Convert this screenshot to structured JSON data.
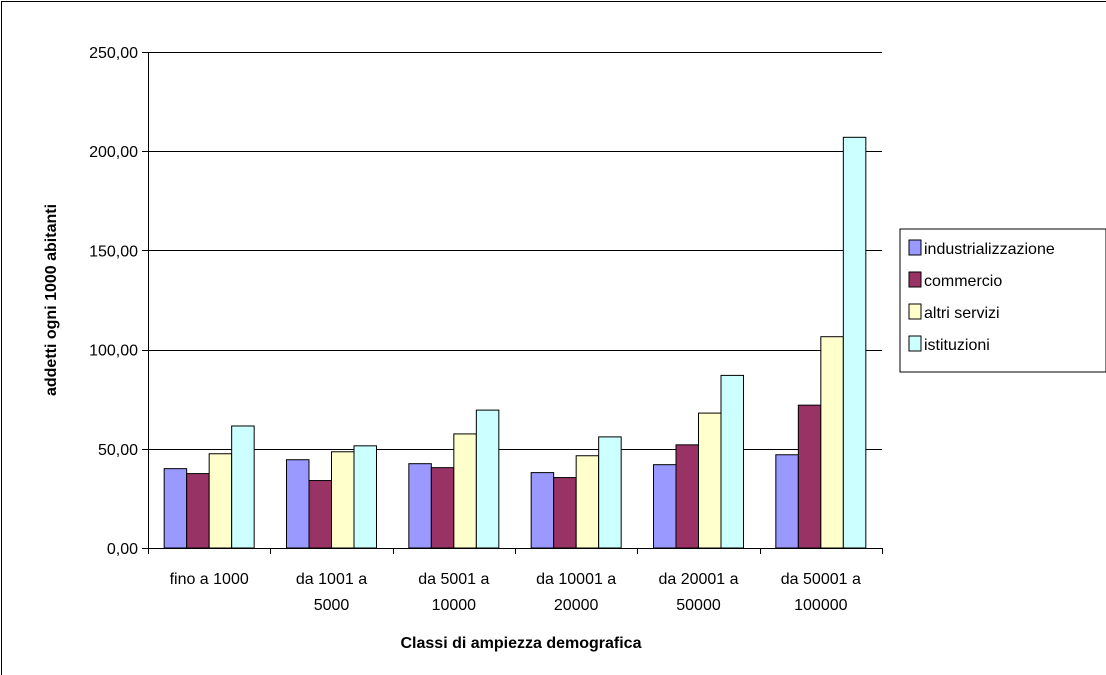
{
  "chart_data": {
    "type": "bar",
    "title": "",
    "xlabel": "Classi di ampiezza demografica",
    "ylabel": "addetti ogni 1000 abitanti",
    "ylim": [
      0,
      250
    ],
    "yticks": [
      "0,00",
      "50,00",
      "100,00",
      "150,00",
      "200,00",
      "250,00"
    ],
    "ytick_values": [
      0,
      50,
      100,
      150,
      200,
      250
    ],
    "grid": true,
    "legend_position": "right",
    "categories": [
      [
        "fino a 1000"
      ],
      [
        "da 1001 a",
        "5000"
      ],
      [
        "da 5001 a",
        "10000"
      ],
      [
        "da 10001 a",
        "20000"
      ],
      [
        "da 20001 a",
        "50000"
      ],
      [
        "da 50001 a",
        "100000"
      ]
    ],
    "series": [
      {
        "name": "industrializzazione",
        "color": "#9999ff",
        "values": [
          40,
          44.5,
          42.5,
          38,
          42,
          47
        ]
      },
      {
        "name": "commercio",
        "color": "#993366",
        "values": [
          37.5,
          34,
          40.5,
          35.5,
          52,
          72
        ]
      },
      {
        "name": "altri servizi",
        "color": "#ffffcc",
        "values": [
          47.5,
          48.5,
          57.5,
          46.5,
          68,
          106.5
        ]
      },
      {
        "name": "istituzioni",
        "color": "#ccffff",
        "values": [
          61.5,
          51.5,
          69.5,
          56,
          87,
          207
        ]
      }
    ]
  }
}
